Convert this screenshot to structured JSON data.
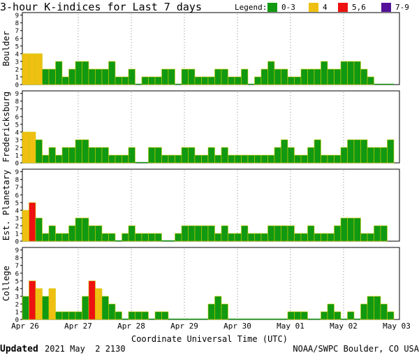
{
  "header": {
    "title": "3-hour K-indices for Last 7 days",
    "legend_label": "Legend:",
    "legend": [
      {
        "label": "0-3",
        "color": "#119911"
      },
      {
        "label": "4",
        "color": "#efbf11"
      },
      {
        "label": "5,6",
        "color": "#ee1111"
      },
      {
        "label": "7-9",
        "color": "#551199"
      }
    ]
  },
  "x_axis": {
    "label": "Coordinate Universal Time (UTC)",
    "ticks": [
      "Apr 26",
      "Apr 27",
      "Apr 28",
      "Apr 29",
      "Apr 30",
      "May 01",
      "May 02",
      "May 03"
    ]
  },
  "y_axis": {
    "ticks": [
      "0",
      "1",
      "2",
      "3",
      "4",
      "5",
      "6",
      "7",
      "8",
      "9"
    ]
  },
  "footer": {
    "updated_label": "Updated",
    "updated_value": "2021 May  2 2130",
    "source": "NOAA/SWPC Boulder, CO USA"
  },
  "chart_data": [
    {
      "type": "bar",
      "ylabel": "Boulder",
      "ylim": [
        0,
        9
      ],
      "values": [
        4,
        4,
        4,
        2,
        2,
        3,
        1,
        2,
        3,
        3,
        2,
        2,
        2,
        3,
        1,
        1,
        2,
        0,
        1,
        1,
        1,
        2,
        2,
        0,
        2,
        2,
        1,
        1,
        1,
        2,
        2,
        1,
        1,
        2,
        0,
        1,
        2,
        3,
        2,
        2,
        1,
        1,
        2,
        2,
        2,
        3,
        2,
        2,
        3,
        3,
        3,
        2,
        1,
        0,
        0,
        0
      ]
    },
    {
      "type": "bar",
      "ylabel": "Fredericksburg",
      "ylim": [
        0,
        9
      ],
      "values": [
        4,
        4,
        3,
        1,
        2,
        1,
        2,
        2,
        3,
        3,
        2,
        2,
        2,
        1,
        1,
        1,
        2,
        0,
        0,
        2,
        2,
        1,
        1,
        1,
        2,
        2,
        1,
        1,
        2,
        1,
        2,
        1,
        1,
        1,
        1,
        1,
        1,
        1,
        2,
        3,
        2,
        1,
        1,
        2,
        3,
        1,
        1,
        1,
        2,
        3,
        3,
        3,
        2,
        2,
        2,
        3,
        0
      ]
    },
    {
      "type": "bar",
      "ylabel": "Est. Planetary",
      "ylim": [
        0,
        9
      ],
      "values": [
        4,
        5,
        3,
        1,
        2,
        1,
        1,
        2,
        3,
        3,
        2,
        2,
        1,
        1,
        0,
        1,
        2,
        1,
        1,
        1,
        1,
        0,
        0,
        1,
        2,
        2,
        2,
        2,
        2,
        1,
        2,
        1,
        1,
        2,
        1,
        1,
        1,
        2,
        2,
        2,
        2,
        1,
        1,
        2,
        1,
        1,
        1,
        2,
        3,
        3,
        3,
        1,
        1,
        2,
        2
      ]
    },
    {
      "type": "bar",
      "ylabel": "College",
      "ylim": [
        0,
        9
      ],
      "values": [
        3,
        5,
        4,
        3,
        4,
        1,
        1,
        1,
        1,
        3,
        5,
        4,
        3,
        2,
        1,
        0,
        1,
        1,
        1,
        0,
        1,
        1,
        0,
        0,
        0,
        0,
        0,
        0,
        2,
        3,
        2,
        0,
        0,
        0,
        0,
        0,
        0,
        0,
        0,
        0,
        1,
        1,
        1,
        0,
        0,
        1,
        2,
        1,
        0,
        1,
        0,
        2,
        3,
        3,
        2,
        1,
        0,
        1,
        0
      ]
    }
  ]
}
